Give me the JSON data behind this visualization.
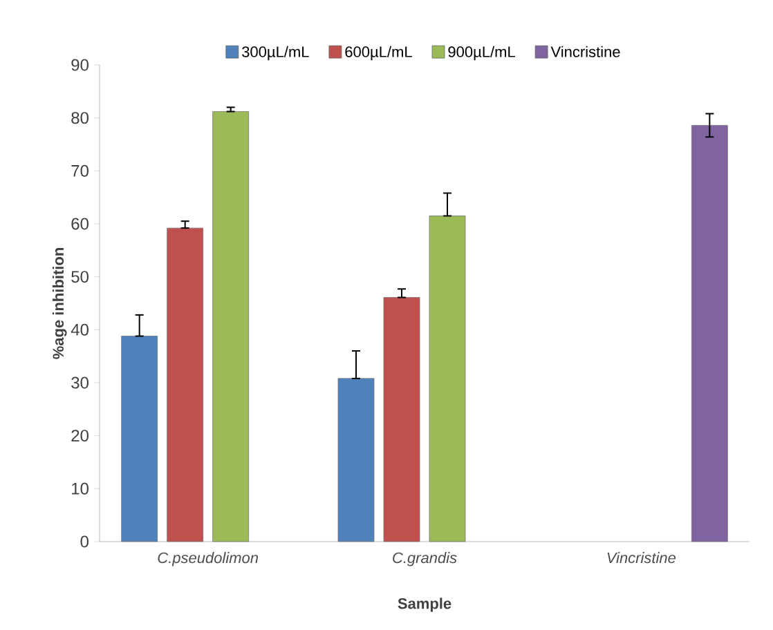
{
  "chart_data": {
    "type": "bar",
    "xlabel": "Sample",
    "ylabel": "%age inhibition",
    "categories": [
      "C.pseudolimon",
      "C.grandis",
      "Vincristine"
    ],
    "series": [
      {
        "name": "300µL/mL",
        "color": "#4f81bd",
        "values": [
          38.8,
          30.8,
          null
        ],
        "errors": [
          [
            38.8,
            42.8
          ],
          [
            30.8,
            36.0
          ],
          null
        ]
      },
      {
        "name": "600µL/mL",
        "color": "#c0504d",
        "values": [
          59.2,
          46.1,
          null
        ],
        "errors": [
          [
            59.2,
            60.5
          ],
          [
            46.1,
            47.7
          ],
          null
        ]
      },
      {
        "name": "900µL/mL",
        "color": "#9bbb59",
        "values": [
          81.2,
          61.5,
          null
        ],
        "errors": [
          [
            81.2,
            82.0
          ],
          [
            61.5,
            65.8
          ],
          null
        ]
      },
      {
        "name": "Vincristine",
        "color": "#8064a2",
        "values": [
          null,
          null,
          78.6
        ],
        "errors": [
          null,
          null,
          2.2
        ]
      }
    ],
    "ylim": [
      0,
      90
    ],
    "yticks": [
      0,
      10,
      20,
      30,
      40,
      50,
      60,
      70,
      80,
      90
    ],
    "grid": false,
    "legend": "top"
  }
}
